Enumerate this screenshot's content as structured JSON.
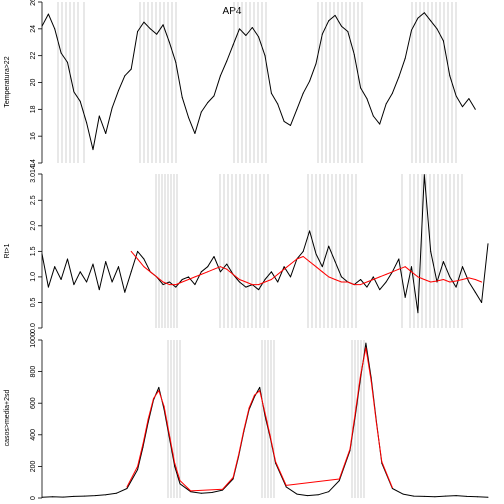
{
  "title": "AP4",
  "colors": {
    "background": "#ffffff",
    "series_black": "#000000",
    "series_red": "#ff0000",
    "marker_lines": "#bdbdbd",
    "axis": "#000000"
  },
  "chart_data": [
    {
      "id": "temperature",
      "type": "line",
      "ylabel": "Temperatura>22",
      "ylim": [
        14,
        26
      ],
      "yticks": [
        14,
        16,
        18,
        20,
        22,
        24,
        26
      ],
      "ytick_labels": [
        "14",
        "16",
        "18",
        "20",
        "22",
        "24",
        "26"
      ],
      "xlim": [
        0,
        420
      ],
      "series": [
        {
          "color": "#000000",
          "x": [
            0,
            6,
            12,
            18,
            24,
            30,
            36,
            42,
            48,
            54,
            60,
            66,
            72,
            78,
            84,
            90,
            96,
            102,
            108,
            114,
            120,
            126,
            132,
            138,
            144,
            150,
            156,
            162,
            168,
            174,
            180,
            186,
            192,
            198,
            204,
            210,
            216,
            222,
            228,
            234,
            240,
            246,
            252,
            258,
            264,
            270,
            276,
            282,
            288,
            294,
            300,
            306,
            312,
            318,
            324,
            330,
            336,
            342,
            348,
            354,
            360,
            366,
            372,
            378,
            384,
            390,
            396,
            402,
            408
          ],
          "values": [
            24.2,
            25.1,
            24.0,
            22.2,
            21.5,
            19.3,
            18.6,
            17.0,
            15.0,
            17.5,
            16.2,
            18.1,
            19.4,
            20.5,
            21.0,
            23.8,
            24.5,
            24.0,
            23.6,
            24.3,
            23.0,
            21.5,
            18.9,
            17.4,
            16.2,
            17.8,
            18.5,
            19.0,
            20.5,
            21.6,
            22.8,
            24.0,
            23.5,
            24.1,
            23.4,
            22.0,
            19.2,
            18.4,
            17.1,
            16.8,
            18.0,
            19.2,
            20.1,
            21.4,
            23.6,
            24.6,
            25.0,
            24.2,
            23.8,
            22.1,
            19.6,
            18.8,
            17.5,
            16.9,
            18.4,
            19.2,
            20.4,
            21.8,
            23.9,
            24.8,
            25.2,
            24.6,
            24.0,
            23.1,
            20.5,
            19.0,
            18.2,
            18.8,
            18.0
          ]
        }
      ]
    },
    {
      "id": "rt",
      "type": "line",
      "ylabel": "Rt>1",
      "ylim": [
        0,
        3.014
      ],
      "yticks": [
        0.0,
        0.5,
        1.0,
        1.5,
        2.0,
        2.5,
        3.014
      ],
      "ytick_labels": [
        "0.0",
        "0.5",
        "1.0",
        "1.5",
        "2.0",
        "2.5",
        "3.014"
      ],
      "xlim": [
        0,
        420
      ],
      "series": [
        {
          "color": "#000000",
          "x": [
            0,
            6,
            12,
            18,
            24,
            30,
            36,
            42,
            48,
            54,
            60,
            66,
            72,
            78,
            84,
            90,
            96,
            102,
            108,
            114,
            120,
            126,
            132,
            138,
            144,
            150,
            156,
            162,
            168,
            174,
            180,
            186,
            192,
            198,
            204,
            210,
            216,
            222,
            228,
            234,
            240,
            246,
            252,
            258,
            264,
            270,
            276,
            282,
            288,
            294,
            300,
            306,
            312,
            318,
            324,
            330,
            336,
            342,
            348,
            354,
            360,
            366,
            372,
            378,
            384,
            390,
            396,
            402,
            408,
            414,
            420
          ],
          "values": [
            1.45,
            0.8,
            1.2,
            0.95,
            1.35,
            0.85,
            1.1,
            0.9,
            1.25,
            0.75,
            1.3,
            0.9,
            1.2,
            0.7,
            1.1,
            1.5,
            1.35,
            1.1,
            1.0,
            0.85,
            0.9,
            0.8,
            0.95,
            1.0,
            0.85,
            1.1,
            1.2,
            1.4,
            1.1,
            1.25,
            1.05,
            0.9,
            0.8,
            0.85,
            0.75,
            0.95,
            1.1,
            0.9,
            1.2,
            1.0,
            1.35,
            1.5,
            1.9,
            1.45,
            1.2,
            1.6,
            1.3,
            1.0,
            0.9,
            0.85,
            0.95,
            0.8,
            1.0,
            0.75,
            0.9,
            1.1,
            1.35,
            0.6,
            1.2,
            0.3,
            3.0,
            1.5,
            0.9,
            1.3,
            1.0,
            0.8,
            1.2,
            0.9,
            0.7,
            0.5,
            1.65
          ]
        },
        {
          "color": "#ff0000",
          "x": [
            84,
            90,
            96,
            102,
            108,
            114,
            120,
            126,
            132,
            138,
            144,
            150,
            156,
            162,
            168,
            174,
            180,
            186,
            192,
            198,
            204,
            210,
            216,
            222,
            228,
            234,
            240,
            246,
            252,
            258,
            264,
            270,
            276,
            282,
            288,
            294,
            300,
            306,
            312,
            318,
            324,
            330,
            336,
            342,
            348,
            354,
            360,
            366,
            372,
            378,
            384,
            390,
            396,
            402,
            408,
            414
          ],
          "values": [
            1.5,
            1.35,
            1.2,
            1.1,
            1.0,
            0.9,
            0.85,
            0.85,
            0.9,
            0.95,
            1.0,
            1.05,
            1.1,
            1.15,
            1.2,
            1.15,
            1.05,
            0.95,
            0.9,
            0.85,
            0.85,
            0.9,
            0.95,
            1.05,
            1.15,
            1.25,
            1.35,
            1.4,
            1.3,
            1.2,
            1.1,
            1.0,
            0.95,
            0.9,
            0.9,
            0.85,
            0.85,
            0.9,
            0.95,
            1.0,
            1.05,
            1.1,
            1.15,
            1.2,
            1.1,
            1.0,
            0.95,
            0.9,
            0.92,
            0.95,
            0.9,
            0.92,
            0.95,
            0.98,
            0.95,
            0.9
          ]
        }
      ]
    },
    {
      "id": "cases",
      "type": "line",
      "ylabel": "casos>media+2sd",
      "ylim": [
        0,
        1000
      ],
      "yticks": [
        0,
        200,
        400,
        600,
        800,
        1000
      ],
      "ytick_labels": [
        "0",
        "200",
        "400",
        "600",
        "800",
        "1000"
      ],
      "xlim": [
        0,
        420
      ],
      "series": [
        {
          "color": "#000000",
          "x": [
            0,
            10,
            20,
            30,
            40,
            50,
            60,
            70,
            80,
            90,
            95,
            100,
            105,
            110,
            115,
            120,
            125,
            130,
            140,
            150,
            160,
            170,
            180,
            185,
            190,
            195,
            200,
            205,
            210,
            215,
            220,
            230,
            240,
            250,
            260,
            270,
            280,
            290,
            295,
            300,
            305,
            310,
            315,
            320,
            330,
            340,
            350,
            360,
            370,
            380,
            390,
            400,
            410,
            420
          ],
          "values": [
            5,
            8,
            6,
            10,
            12,
            15,
            20,
            30,
            60,
            180,
            320,
            480,
            620,
            700,
            560,
            380,
            200,
            90,
            40,
            30,
            35,
            50,
            120,
            260,
            420,
            560,
            640,
            700,
            520,
            380,
            220,
            70,
            25,
            15,
            20,
            40,
            110,
            300,
            520,
            760,
            980,
            760,
            480,
            220,
            60,
            25,
            12,
            10,
            8,
            12,
            15,
            10,
            8,
            5
          ]
        },
        {
          "color": "#ff0000",
          "x": [
            80,
            90,
            95,
            100,
            105,
            110,
            115,
            120,
            125,
            130,
            140,
            170,
            180,
            185,
            190,
            195,
            200,
            205,
            210,
            215,
            220,
            230,
            280,
            290,
            295,
            300,
            305,
            310,
            315,
            320,
            330
          ],
          "values": [
            70,
            200,
            340,
            500,
            630,
            680,
            580,
            400,
            220,
            110,
            45,
            55,
            130,
            270,
            430,
            570,
            650,
            680,
            540,
            390,
            230,
            80,
            120,
            310,
            540,
            780,
            950,
            740,
            470,
            230,
            65
          ]
        }
      ]
    }
  ]
}
